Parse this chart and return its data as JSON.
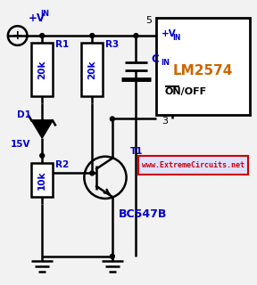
{
  "bg_color": "#f2f2f2",
  "line_color": "#000000",
  "blue_color": "#0000cc",
  "orange_color": "#cc6600",
  "red_color": "#cc0000",
  "website": "www.ExtremeCircuits.net",
  "ic_label": "LM2574",
  "transistor_label": "BC547B",
  "r1_val": "20k",
  "r2_val": "10k",
  "r3_val": "20k",
  "zener_val": "15V",
  "onoff_label": "ON/OFF"
}
